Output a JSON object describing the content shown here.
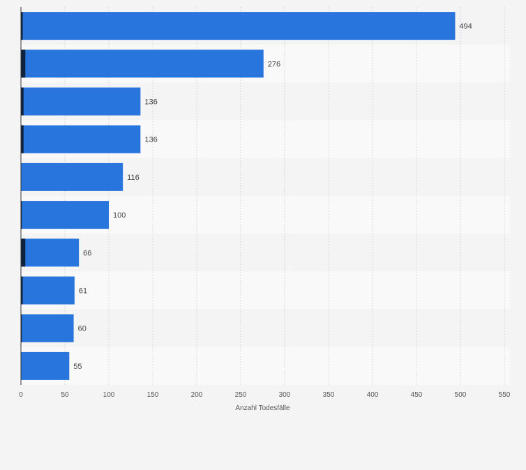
{
  "chart_data": {
    "type": "bar",
    "orientation": "horizontal",
    "title": "",
    "xlabel": "Anzahl Todesfälle",
    "ylabel": "",
    "categories": [
      "",
      "",
      "",
      "",
      "",
      "",
      "",
      "",
      "",
      ""
    ],
    "values": [
      494,
      276,
      136,
      136,
      116,
      100,
      66,
      61,
      60,
      55
    ],
    "xlim": [
      0,
      550
    ],
    "xticks": [
      0,
      50,
      100,
      150,
      200,
      250,
      300,
      350,
      400,
      450,
      500,
      550
    ],
    "grid": true,
    "data_labels": true,
    "bar_color": "#2876dd",
    "accent_segment_values": [
      2,
      5,
      3,
      3,
      0,
      1,
      5,
      2,
      1,
      0
    ],
    "accent_color": "#10233c",
    "band_colors": [
      "#f4f4f4",
      "#f9f9f9"
    ],
    "grid_color": "#d9d9d9",
    "text_color": "#444444"
  }
}
